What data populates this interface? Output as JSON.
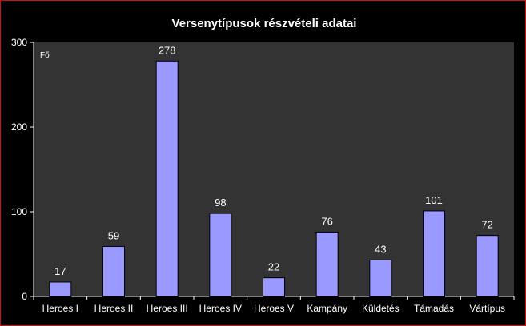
{
  "chart_data": {
    "type": "bar",
    "title": "Versenytípusok részvételi adatai",
    "ylabel": "Fő",
    "xlabel": "",
    "categories": [
      "Heroes I",
      "Heroes II",
      "Heroes III",
      "Heroes IV",
      "Heroes V",
      "Kampány",
      "Küldetés",
      "Támadás",
      "Vártípus"
    ],
    "values": [
      17,
      59,
      278,
      98,
      22,
      76,
      43,
      101,
      72
    ],
    "ylim": [
      0,
      300
    ],
    "yticks": [
      0,
      100,
      200,
      300
    ],
    "grid": false,
    "legend": "none",
    "colors": {
      "bar": "#9999ff",
      "plot_bg": "#333333",
      "page_bg": "#000000",
      "border": "#cc1111",
      "text": "#ffffff"
    }
  }
}
